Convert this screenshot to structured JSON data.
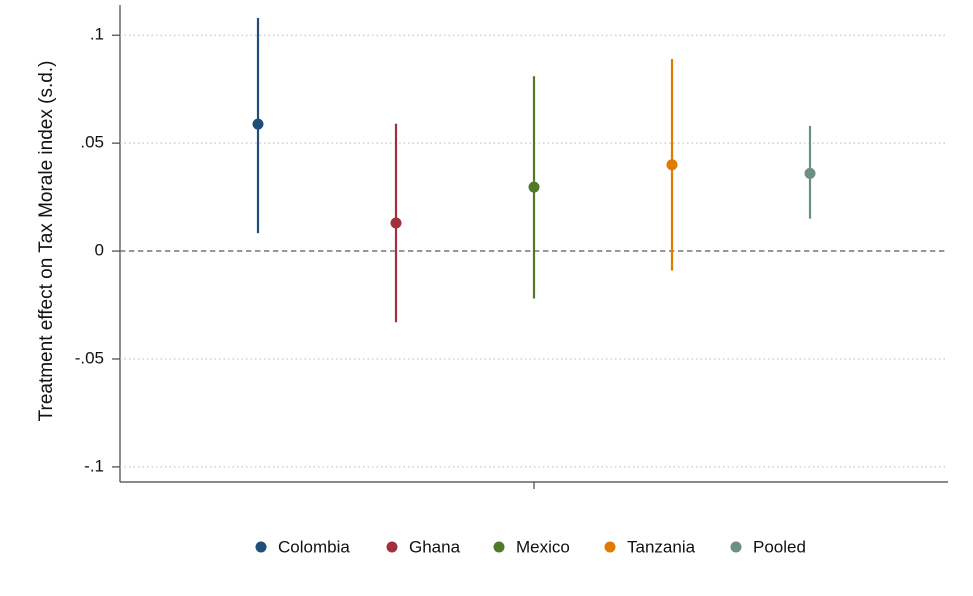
{
  "chart_data": {
    "type": "coefplot",
    "ylabel": "Treatment effect on Tax Morale index (s.d.)",
    "ylim": [
      -0.107,
      0.114
    ],
    "yticks": [
      {
        "value": -0.1,
        "label": "-.1"
      },
      {
        "value": -0.05,
        "label": "-.05"
      },
      {
        "value": 0,
        "label": "0"
      },
      {
        "value": 0.05,
        "label": ".05"
      },
      {
        "value": 0.1,
        "label": ".1"
      }
    ],
    "grid": true,
    "reference_line": 0,
    "legend": "bottom",
    "series": [
      {
        "name": "Colombia",
        "color": "#1f4e79",
        "values": [
          0.0588
        ],
        "lower": [
          0.0083
        ],
        "upper": [
          0.108
        ]
      },
      {
        "name": "Ghana",
        "color": "#a0303a",
        "values": [
          0.013
        ],
        "lower": [
          -0.033
        ],
        "upper": [
          0.059
        ]
      },
      {
        "name": "Mexico",
        "color": "#4f7a28",
        "values": [
          0.0296
        ],
        "lower": [
          -0.022
        ],
        "upper": [
          0.081
        ]
      },
      {
        "name": "Tanzania",
        "color": "#e07b00",
        "values": [
          0.04
        ],
        "lower": [
          -0.009
        ],
        "upper": [
          0.089
        ]
      },
      {
        "name": "Pooled",
        "color": "#6b8f80",
        "values": [
          0.036
        ],
        "lower": [
          0.015
        ],
        "upper": [
          0.058
        ]
      }
    ]
  }
}
